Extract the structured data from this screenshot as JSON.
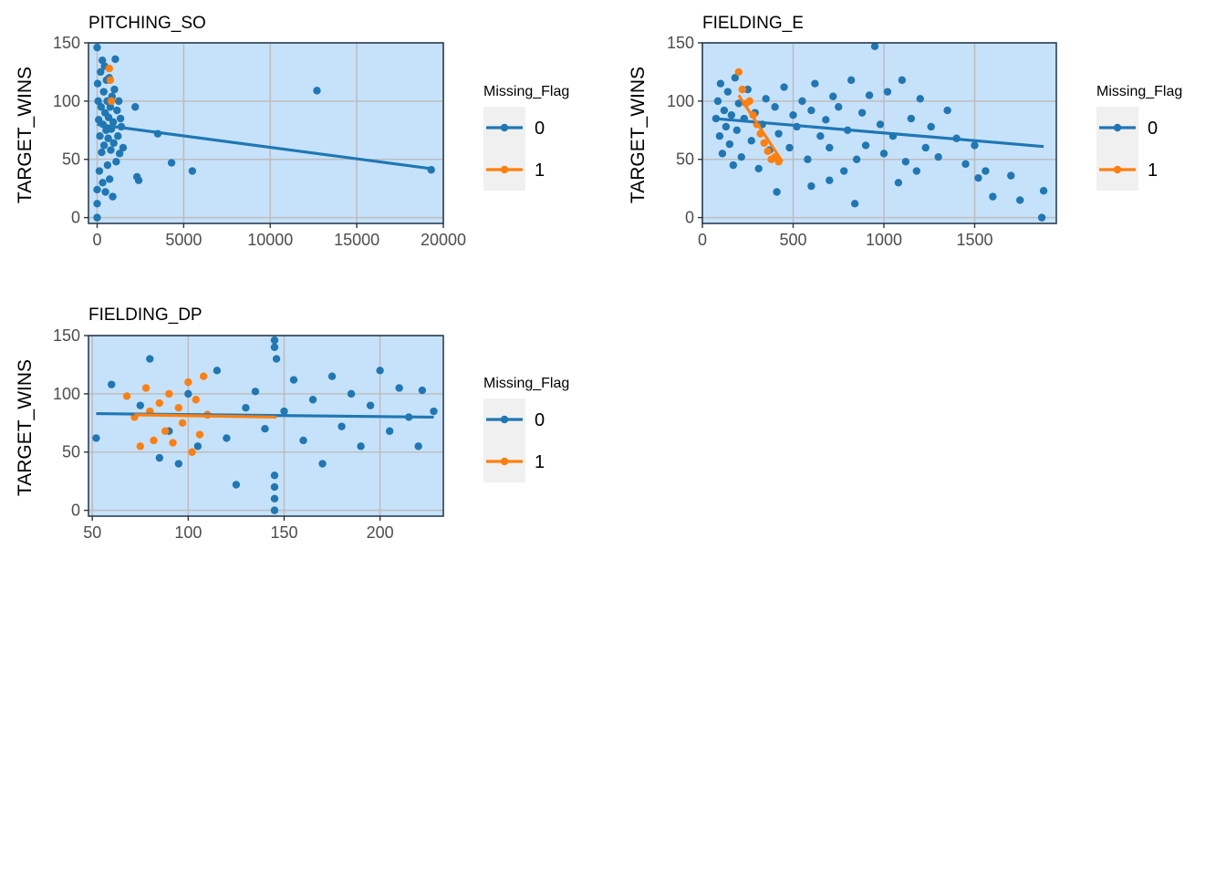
{
  "colors": {
    "panel_background": "#c6e2fb",
    "panel_border": "#2b3f55",
    "grid": "#bdbdbd",
    "flag_0": "#1f77b4",
    "flag_1": "#ff7f0e",
    "legend_key_background": "#f0f0f0"
  },
  "chart_data": [
    {
      "type": "scatter",
      "title": "PITCHING_SO",
      "ylabel": "TARGET_WINS",
      "xlabel": "",
      "xlim": [
        -500,
        20000
      ],
      "ylim": [
        -5,
        150
      ],
      "x_ticks": [
        0,
        5000,
        10000,
        15000,
        20000
      ],
      "y_ticks": [
        0,
        50,
        100,
        150
      ],
      "grid": true,
      "legend": {
        "title": "Missing_Flag",
        "placement": "right",
        "entries": [
          {
            "label": "0",
            "color": "#1f77b4"
          },
          {
            "label": "1",
            "color": "#ff7f0e"
          }
        ]
      },
      "series": [
        {
          "name": "0",
          "points": [
            [
              0,
              146
            ],
            [
              0,
              0
            ],
            [
              0,
              12
            ],
            [
              0,
              24
            ],
            [
              30,
              115
            ],
            [
              60,
              100
            ],
            [
              90,
              84
            ],
            [
              130,
              40
            ],
            [
              160,
              70
            ],
            [
              200,
              125
            ],
            [
              230,
              95
            ],
            [
              260,
              56
            ],
            [
              300,
              135
            ],
            [
              320,
              30
            ],
            [
              340,
              80
            ],
            [
              380,
              108
            ],
            [
              400,
              62
            ],
            [
              430,
              130
            ],
            [
              460,
              90
            ],
            [
              480,
              22
            ],
            [
              520,
              75
            ],
            [
              540,
              118
            ],
            [
              580,
              100
            ],
            [
              600,
              45
            ],
            [
              640,
              68
            ],
            [
              660,
              86
            ],
            [
              700,
              120
            ],
            [
              720,
              33
            ],
            [
              760,
              95
            ],
            [
              790,
              58
            ],
            [
              820,
              76
            ],
            [
              860,
              104
            ],
            [
              900,
              18
            ],
            [
              930,
              82
            ],
            [
              960,
              64
            ],
            [
              1000,
              110
            ],
            [
              1050,
              136
            ],
            [
              1100,
              48
            ],
            [
              1150,
              92
            ],
            [
              1200,
              70
            ],
            [
              1250,
              100
            ],
            [
              1300,
              55
            ],
            [
              1350,
              85
            ],
            [
              1400,
              78
            ],
            [
              1500,
              60
            ],
            [
              2200,
              95
            ],
            [
              2300,
              35
            ],
            [
              2400,
              32
            ],
            [
              3500,
              72
            ],
            [
              4300,
              47
            ],
            [
              5500,
              40
            ],
            [
              12700,
              109
            ],
            [
              19300,
              41
            ]
          ],
          "trend": [
            [
              0,
              80
            ],
            [
              19300,
              42
            ]
          ]
        },
        {
          "name": "1",
          "points": [
            [
              700,
              128
            ],
            [
              760,
              118
            ],
            [
              820,
              100
            ]
          ],
          "trend": []
        }
      ]
    },
    {
      "type": "scatter",
      "title": "FIELDING_E",
      "ylabel": "TARGET_WINS",
      "xlabel": "",
      "xlim": [
        0,
        1950
      ],
      "ylim": [
        -5,
        150
      ],
      "x_ticks": [
        0,
        500,
        1000,
        1500
      ],
      "y_ticks": [
        0,
        50,
        100,
        150
      ],
      "grid": true,
      "legend": {
        "title": "Missing_Flag",
        "placement": "right",
        "entries": [
          {
            "label": "0",
            "color": "#1f77b4"
          },
          {
            "label": "1",
            "color": "#ff7f0e"
          }
        ]
      },
      "series": [
        {
          "name": "0",
          "points": [
            [
              75,
              85
            ],
            [
              85,
              100
            ],
            [
              95,
              70
            ],
            [
              100,
              115
            ],
            [
              110,
              55
            ],
            [
              120,
              92
            ],
            [
              130,
              78
            ],
            [
              140,
              108
            ],
            [
              150,
              63
            ],
            [
              160,
              88
            ],
            [
              170,
              45
            ],
            [
              180,
              120
            ],
            [
              190,
              75
            ],
            [
              200,
              98
            ],
            [
              215,
              52
            ],
            [
              230,
              85
            ],
            [
              250,
              110
            ],
            [
              270,
              66
            ],
            [
              290,
              90
            ],
            [
              310,
              42
            ],
            [
              330,
              80
            ],
            [
              350,
              102
            ],
            [
              370,
              58
            ],
            [
              400,
              95
            ],
            [
              420,
              72
            ],
            [
              450,
              112
            ],
            [
              480,
              60
            ],
            [
              500,
              88
            ],
            [
              520,
              78
            ],
            [
              550,
              100
            ],
            [
              580,
              50
            ],
            [
              600,
              92
            ],
            [
              620,
              115
            ],
            [
              650,
              70
            ],
            [
              680,
              84
            ],
            [
              700,
              60
            ],
            [
              720,
              104
            ],
            [
              750,
              95
            ],
            [
              780,
              40
            ],
            [
              800,
              75
            ],
            [
              820,
              118
            ],
            [
              850,
              50
            ],
            [
              880,
              90
            ],
            [
              900,
              62
            ],
            [
              920,
              105
            ],
            [
              950,
              147
            ],
            [
              980,
              80
            ],
            [
              1000,
              55
            ],
            [
              1020,
              108
            ],
            [
              1050,
              70
            ],
            [
              1080,
              30
            ],
            [
              1100,
              118
            ],
            [
              1120,
              48
            ],
            [
              1150,
              85
            ],
            [
              1180,
              40
            ],
            [
              1200,
              102
            ],
            [
              1230,
              60
            ],
            [
              1260,
              78
            ],
            [
              1300,
              52
            ],
            [
              1350,
              92
            ],
            [
              1400,
              68
            ],
            [
              1450,
              46
            ],
            [
              1500,
              62
            ],
            [
              1520,
              34
            ],
            [
              1560,
              40
            ],
            [
              1600,
              18
            ],
            [
              1700,
              36
            ],
            [
              1750,
              15
            ],
            [
              1880,
              23
            ],
            [
              1870,
              0
            ],
            [
              600,
              27
            ],
            [
              700,
              32
            ],
            [
              840,
              12
            ],
            [
              410,
              22
            ]
          ],
          "trend": [
            [
              70,
              85
            ],
            [
              1880,
              61
            ]
          ]
        },
        {
          "name": "1",
          "points": [
            [
              200,
              125
            ],
            [
              220,
              110
            ],
            [
              240,
              98
            ],
            [
              260,
              100
            ],
            [
              280,
              88
            ],
            [
              300,
              80
            ],
            [
              320,
              72
            ],
            [
              340,
              64
            ],
            [
              360,
              57
            ],
            [
              380,
              50
            ],
            [
              400,
              52
            ],
            [
              420,
              48
            ]
          ],
          "trend": [
            [
              200,
              105
            ],
            [
              440,
              48
            ]
          ]
        }
      ]
    },
    {
      "type": "scatter",
      "title": "FIELDING_DP",
      "ylabel": "TARGET_WINS",
      "xlabel": "",
      "xlim": [
        48,
        233
      ],
      "ylim": [
        -5,
        150
      ],
      "x_ticks": [
        50,
        100,
        150,
        200
      ],
      "y_ticks": [
        0,
        50,
        100,
        150
      ],
      "grid": true,
      "legend": {
        "title": "Missing_Flag",
        "placement": "right",
        "entries": [
          {
            "label": "0",
            "color": "#1f77b4"
          },
          {
            "label": "1",
            "color": "#ff7f0e"
          }
        ]
      },
      "series": [
        {
          "name": "0",
          "points": [
            [
              52,
              62
            ],
            [
              60,
              108
            ],
            [
              75,
              90
            ],
            [
              80,
              130
            ],
            [
              85,
              45
            ],
            [
              90,
              68
            ],
            [
              95,
              40
            ],
            [
              100,
              100
            ],
            [
              105,
              55
            ],
            [
              110,
              82
            ],
            [
              115,
              120
            ],
            [
              120,
              62
            ],
            [
              125,
              22
            ],
            [
              130,
              88
            ],
            [
              135,
              102
            ],
            [
              140,
              70
            ],
            [
              145,
              0
            ],
            [
              145,
              10
            ],
            [
              145,
              20
            ],
            [
              145,
              30
            ],
            [
              145,
              146
            ],
            [
              145,
              140
            ],
            [
              146,
              130
            ],
            [
              150,
              85
            ],
            [
              155,
              112
            ],
            [
              160,
              60
            ],
            [
              165,
              95
            ],
            [
              170,
              40
            ],
            [
              175,
              115
            ],
            [
              180,
              72
            ],
            [
              185,
              100
            ],
            [
              190,
              55
            ],
            [
              195,
              90
            ],
            [
              200,
              120
            ],
            [
              205,
              68
            ],
            [
              210,
              105
            ],
            [
              215,
              80
            ],
            [
              220,
              55
            ],
            [
              222,
              103
            ],
            [
              228,
              85
            ]
          ],
          "trend": [
            [
              52,
              83
            ],
            [
              228,
              80
            ]
          ]
        },
        {
          "name": "1",
          "points": [
            [
              68,
              98
            ],
            [
              72,
              80
            ],
            [
              75,
              55
            ],
            [
              78,
              105
            ],
            [
              80,
              85
            ],
            [
              82,
              60
            ],
            [
              85,
              92
            ],
            [
              88,
              68
            ],
            [
              90,
              100
            ],
            [
              92,
              58
            ],
            [
              95,
              88
            ],
            [
              97,
              75
            ],
            [
              100,
              110
            ],
            [
              102,
              50
            ],
            [
              104,
              95
            ],
            [
              106,
              65
            ],
            [
              108,
              115
            ],
            [
              110,
              82
            ]
          ],
          "trend": [
            [
              72,
              82
            ],
            [
              146,
              80
            ]
          ]
        }
      ]
    }
  ]
}
